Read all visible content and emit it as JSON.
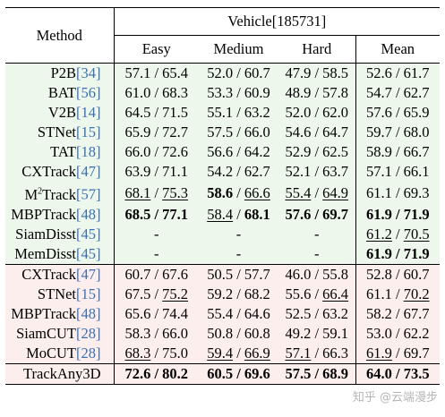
{
  "header": {
    "method_label": "Method",
    "group_label": "Vehicle[185731]",
    "columns": [
      "Easy",
      "Medium",
      "Hard",
      "Mean"
    ]
  },
  "top_rows": [
    {
      "name": "P2B",
      "ref": "[34]",
      "cells": [
        {
          "v": "57.1 / 65.4"
        },
        {
          "v": "52.0 / 60.7"
        },
        {
          "v": "47.9 / 58.5"
        },
        {
          "v": "52.6 / 61.7"
        }
      ]
    },
    {
      "name": "BAT",
      "ref": "[56]",
      "cells": [
        {
          "v": "61.0 / 68.3"
        },
        {
          "v": "53.3 / 60.9"
        },
        {
          "v": "48.9 / 57.8"
        },
        {
          "v": "54.7 / 62.7"
        }
      ]
    },
    {
      "name": "V2B",
      "ref": "[14]",
      "cells": [
        {
          "v": "64.5 / 71.5"
        },
        {
          "v": "55.1 / 63.2"
        },
        {
          "v": "52.0 / 62.0"
        },
        {
          "v": "57.6 / 65.9"
        }
      ]
    },
    {
      "name": "STNet",
      "ref": "[15]",
      "cells": [
        {
          "v": "65.9 / 72.7"
        },
        {
          "v": "57.5 / 66.0"
        },
        {
          "v": "54.6 / 64.7"
        },
        {
          "v": "59.7 / 68.0"
        }
      ]
    },
    {
      "name": "TAT",
      "ref": "[18]",
      "cells": [
        {
          "v": "66.0 / 72.6"
        },
        {
          "v": "56.6 / 64.2"
        },
        {
          "v": "52.9 / 62.5"
        },
        {
          "v": "58.9 / 66.7"
        }
      ]
    },
    {
      "name": "CXTrack",
      "ref": "[47]",
      "cells": [
        {
          "v": "63.9 / 71.1"
        },
        {
          "v": "54.2 / 62.7"
        },
        {
          "v": "52.1 / 63.7"
        },
        {
          "v": "57.1 / 66.1"
        }
      ]
    },
    {
      "name": "M2Track",
      "ref": "[57]",
      "cells": [
        {
          "a": "68.1",
          "b": "75.3",
          "ua": true,
          "ub": true
        },
        {
          "a": "58.6",
          "b": "66.6",
          "ba": true,
          "ub": true
        },
        {
          "a": "55.4",
          "b": "64.9",
          "ua": true,
          "ub": true
        },
        {
          "v": "61.1 / 69.3"
        }
      ]
    },
    {
      "name": "MBPTrack",
      "ref": "[48]",
      "cells": [
        {
          "a": "68.5",
          "b": "77.1",
          "ba": true,
          "bb": true
        },
        {
          "a": "58.4",
          "b": "68.1",
          "ua": true,
          "bb": true
        },
        {
          "a": "57.6",
          "b": "69.7",
          "ba": true,
          "bb": true
        },
        {
          "a": "61.9",
          "b": "71.9",
          "ba": true,
          "bb": true
        }
      ]
    },
    {
      "name": "SiamDisst",
      "ref": "[45]",
      "cells": [
        {
          "v": "-"
        },
        {
          "v": "-"
        },
        {
          "v": "-"
        },
        {
          "a": "61.2",
          "b": "70.5",
          "ua": true,
          "ub": true
        }
      ]
    },
    {
      "name": "MemDisst",
      "ref": "[45]",
      "cells": [
        {
          "v": "-"
        },
        {
          "v": "-"
        },
        {
          "v": "-"
        },
        {
          "a": "61.9",
          "b": "71.9",
          "ba": true,
          "bb": true
        }
      ]
    }
  ],
  "bottom_rows": [
    {
      "name": "CXTrack",
      "ref": "[47]",
      "cells": [
        {
          "v": "60.7 / 67.6"
        },
        {
          "v": "50.5 / 57.7"
        },
        {
          "v": "46.0 / 55.8"
        },
        {
          "v": "52.8 / 60.7"
        }
      ]
    },
    {
      "name": "STNet",
      "ref": "[15]",
      "cells": [
        {
          "a": "67.5",
          "b": "75.2",
          "ub": true
        },
        {
          "v": "59.2 / 68.2"
        },
        {
          "a": "55.6",
          "b": "66.4",
          "ub": true
        },
        {
          "a": "61.1",
          "b": "70.2",
          "ub": true
        }
      ]
    },
    {
      "name": "MBPTrack",
      "ref": "[48]",
      "cells": [
        {
          "v": "65.6 / 74.4"
        },
        {
          "v": "55.4 / 64.6"
        },
        {
          "v": "52.5 / 63.2"
        },
        {
          "v": "58.2 / 67.7"
        }
      ]
    },
    {
      "name": "SiamCUT",
      "ref": "[28]",
      "cells": [
        {
          "v": "58.3 / 66.0"
        },
        {
          "v": "50.8 / 60.8"
        },
        {
          "v": "49.2 / 59.1"
        },
        {
          "v": "53.0 / 62.2"
        }
      ]
    },
    {
      "name": "MoCUT",
      "ref": "[28]",
      "cells": [
        {
          "a": "68.3",
          "b": "75.0",
          "ua": true
        },
        {
          "a": "59.4",
          "b": "66.9",
          "ua": true,
          "ub": true
        },
        {
          "a": "57.1",
          "b": "66.3",
          "ua": true
        },
        {
          "a": "61.9",
          "b": "69.7",
          "ua": true
        }
      ]
    },
    {
      "name": "TrackAny3D",
      "ref": "",
      "cells": [
        {
          "a": "72.6",
          "b": "80.2",
          "ba": true,
          "bb": true
        },
        {
          "a": "60.5",
          "b": "69.6",
          "ba": true,
          "bb": true
        },
        {
          "a": "57.5",
          "b": "68.9",
          "ba": true,
          "bb": true
        },
        {
          "a": "64.0",
          "b": "73.5",
          "ba": true,
          "bb": true
        }
      ]
    }
  ],
  "watermark": "知乎 @云端漫步"
}
